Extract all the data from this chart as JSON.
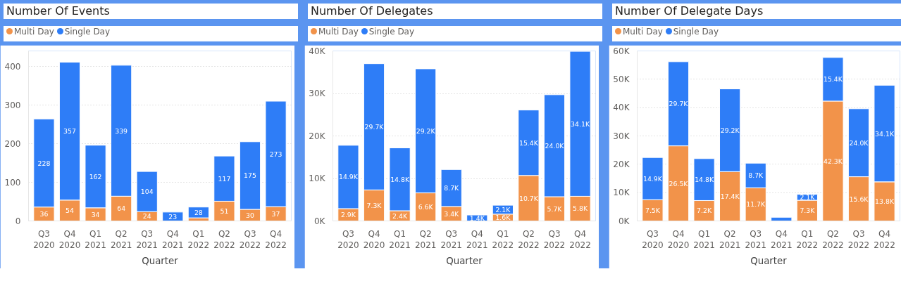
{
  "chart_data": [
    {
      "type": "bar",
      "title": "Number Of Events",
      "xlabel": "Quarter",
      "stacked": true,
      "legend": "top left",
      "grid": "y",
      "categories": [
        "Q3\n2020",
        "Q4\n2020",
        "Q1\n2021",
        "Q2\n2021",
        "Q3\n2021",
        "Q4\n2021",
        "Q1\n2022",
        "Q2\n2022",
        "Q3\n2022",
        "Q4\n2022"
      ],
      "ylim": [
        0,
        440
      ],
      "yticks": [
        0,
        100,
        200,
        300,
        400
      ],
      "series": [
        {
          "name": "Multi Day",
          "color": "#f2934a",
          "values": [
            36,
            54,
            34,
            64,
            24,
            null,
            8,
            51,
            30,
            37
          ],
          "value_labels": [
            "36",
            "54",
            "34",
            "64",
            "24",
            null,
            null,
            "51",
            "30",
            "37"
          ]
        },
        {
          "name": "Single Day",
          "color": "#2e7df7",
          "values": [
            228,
            357,
            162,
            339,
            104,
            23,
            28,
            117,
            175,
            273
          ],
          "value_labels": [
            "228",
            "357",
            "162",
            "339",
            "104",
            "23",
            "28",
            "117",
            "175",
            "273"
          ]
        }
      ]
    },
    {
      "type": "bar",
      "title": "Number Of Delegates",
      "xlabel": "Quarter",
      "stacked": true,
      "legend": "top left",
      "grid": "y",
      "categories": [
        "Q3\n2020",
        "Q4\n2020",
        "Q1\n2021",
        "Q2\n2021",
        "Q3\n2021",
        "Q4\n2021",
        "Q1\n2022",
        "Q2\n2022",
        "Q3\n2022",
        "Q4\n2022"
      ],
      "ylim": [
        0,
        40000
      ],
      "yticks": [
        {
          "value": 0,
          "label": "0K"
        },
        {
          "value": 10000,
          "label": "10K"
        },
        {
          "value": 20000,
          "label": "20K"
        },
        {
          "value": 30000,
          "label": "30K"
        },
        {
          "value": 40000,
          "label": "40K"
        }
      ],
      "series": [
        {
          "name": "Multi Day",
          "color": "#f2934a",
          "values": [
            2900,
            7300,
            2400,
            6600,
            3400,
            null,
            1600,
            10700,
            5700,
            5800
          ],
          "value_labels": [
            "2.9K",
            "7.3K",
            "2.4K",
            "6.6K",
            "3.4K",
            null,
            "1.6K",
            "10.7K",
            "5.7K",
            "5.8K"
          ]
        },
        {
          "name": "Single Day",
          "color": "#2e7df7",
          "values": [
            14900,
            29700,
            14800,
            29200,
            8700,
            1400,
            2100,
            15400,
            24000,
            34100
          ],
          "value_labels": [
            "14.9K",
            "29.7K",
            "14.8K",
            "29.2K",
            "8.7K",
            "1.4K",
            "2.1K",
            "15.4K",
            "24.0K",
            "34.1K"
          ]
        }
      ]
    },
    {
      "type": "bar",
      "title": "Number Of Delegate Days",
      "xlabel": "Quarter",
      "stacked": true,
      "legend": "top left",
      "grid": "y",
      "categories": [
        "Q3\n2020",
        "Q4\n2020",
        "Q1\n2021",
        "Q2\n2021",
        "Q3\n2021",
        "Q4\n2021",
        "Q1\n2022",
        "Q2\n2022",
        "Q3\n2022",
        "Q4\n2022"
      ],
      "ylim": [
        0,
        60000
      ],
      "yticks": [
        {
          "value": 0,
          "label": "0K"
        },
        {
          "value": 10000,
          "label": "10K"
        },
        {
          "value": 20000,
          "label": "20K"
        },
        {
          "value": 30000,
          "label": "30K"
        },
        {
          "value": 40000,
          "label": "40K"
        },
        {
          "value": 50000,
          "label": "50K"
        },
        {
          "value": 60000,
          "label": "60K"
        }
      ],
      "series": [
        {
          "name": "Multi Day",
          "color": "#f2934a",
          "values": [
            7500,
            26500,
            7200,
            17400,
            11700,
            null,
            7300,
            42300,
            15600,
            13800
          ],
          "value_labels": [
            "7.5K",
            "26.5K",
            "7.2K",
            "17.4K",
            "11.7K",
            null,
            "7.3K",
            "42.3K",
            "15.6K",
            "13.8K"
          ]
        },
        {
          "name": "Single Day",
          "color": "#2e7df7",
          "values": [
            14900,
            29700,
            14800,
            29200,
            8700,
            1300,
            2100,
            15400,
            24000,
            34100
          ],
          "value_labels": [
            "14.9K",
            "29.7K",
            "14.8K",
            "29.2K",
            "8.7K",
            null,
            "2.1K",
            "15.4K",
            "24.0K",
            "34.1K"
          ]
        }
      ]
    }
  ]
}
